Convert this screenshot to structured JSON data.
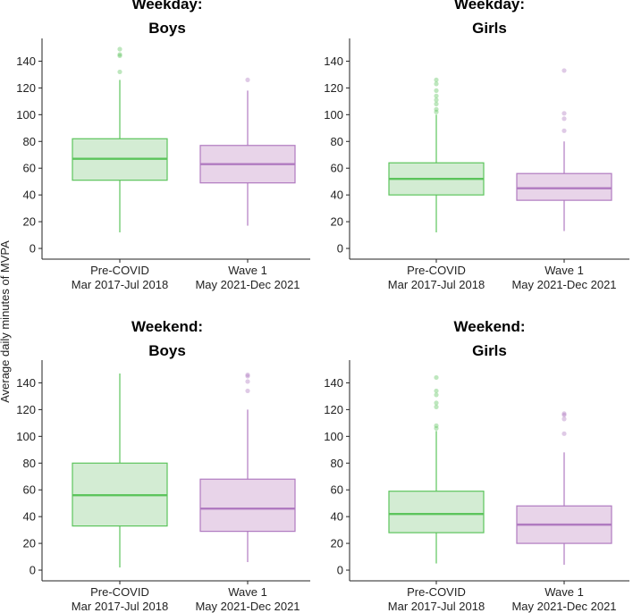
{
  "chart_data": {
    "type": "boxplot",
    "ylabel": "Average daily minutes of MVPA",
    "ylim": [
      -8,
      157
    ],
    "yticks": [
      0,
      20,
      40,
      60,
      80,
      100,
      120,
      140
    ],
    "ytick_labels": [
      "0",
      "20",
      "40",
      "60",
      "80",
      "100",
      "120",
      "140"
    ],
    "groups": [
      {
        "name": "Pre-COVID",
        "period": "Mar 2017-Jul 2018",
        "color": "#5cc45c",
        "fill": "#d3ecd3"
      },
      {
        "name": "Wave 1",
        "period": "May 2021-Dec 2021",
        "color": "#b07ac0",
        "fill": "#e8d4e9"
      }
    ],
    "panels": [
      {
        "title_line1": "Weekday:",
        "title_line2": "Boys",
        "boxes": [
          {
            "group": "Pre-COVID",
            "whisker_low": 12,
            "q1": 51,
            "median": 67,
            "q3": 82,
            "whisker_high": 126,
            "outliers": [
              132,
              144,
              145,
              149
            ]
          },
          {
            "group": "Wave 1",
            "whisker_low": 17,
            "q1": 49,
            "median": 63,
            "q3": 77,
            "whisker_high": 118,
            "outliers": [
              126
            ]
          }
        ]
      },
      {
        "title_line1": "Weekday:",
        "title_line2": "Girls",
        "boxes": [
          {
            "group": "Pre-COVID",
            "whisker_low": 12,
            "q1": 40,
            "median": 52,
            "q3": 64,
            "whisker_high": 100,
            "outliers": [
              102,
              104,
              108,
              111,
              114,
              118,
              123,
              126
            ]
          },
          {
            "group": "Wave 1",
            "whisker_low": 13,
            "q1": 36,
            "median": 45,
            "q3": 56,
            "whisker_high": 80,
            "outliers": [
              88,
              97,
              101,
              133
            ]
          }
        ]
      },
      {
        "title_line1": "Weekend:",
        "title_line2": "Boys",
        "boxes": [
          {
            "group": "Pre-COVID",
            "whisker_low": 2,
            "q1": 33,
            "median": 56,
            "q3": 80,
            "whisker_high": 147,
            "outliers": []
          },
          {
            "group": "Wave 1",
            "whisker_low": 6,
            "q1": 29,
            "median": 46,
            "q3": 68,
            "whisker_high": 120,
            "outliers": [
              134,
              141,
              145,
              146
            ]
          }
        ]
      },
      {
        "title_line1": "Weekend:",
        "title_line2": "Girls",
        "boxes": [
          {
            "group": "Pre-COVID",
            "whisker_low": 5,
            "q1": 28,
            "median": 42,
            "q3": 59,
            "whisker_high": 104,
            "outliers": [
              106,
              108,
              122,
              125,
              131,
              134,
              144
            ]
          },
          {
            "group": "Wave 1",
            "whisker_low": 4,
            "q1": 20,
            "median": 34,
            "q3": 48,
            "whisker_high": 88,
            "outliers": [
              102,
              113,
              116,
              117
            ]
          }
        ]
      }
    ]
  }
}
